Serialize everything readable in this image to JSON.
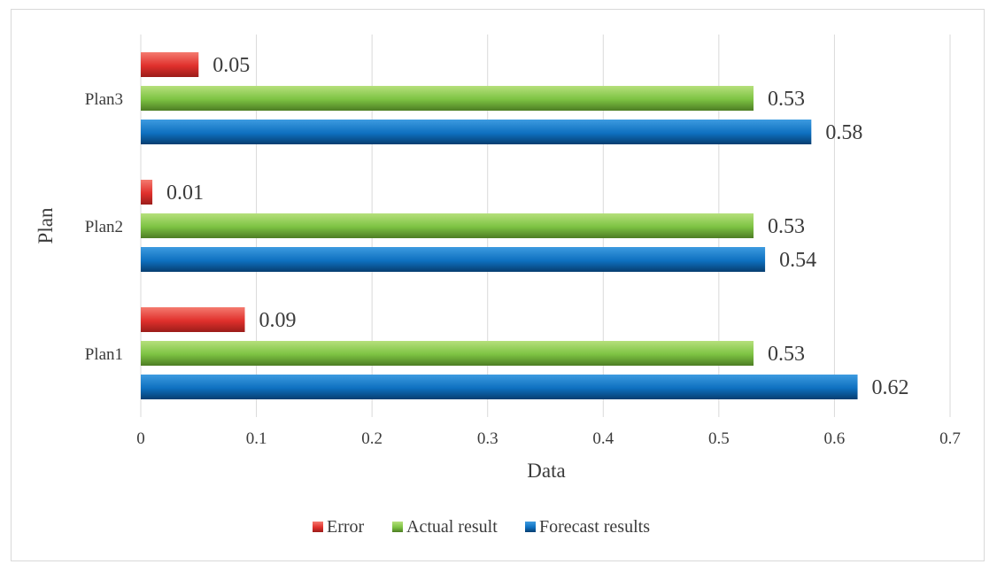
{
  "chart_data": {
    "type": "bar",
    "orientation": "horizontal",
    "categories": [
      "Plan1",
      "Plan2",
      "Plan3"
    ],
    "series": [
      {
        "name": "Error",
        "values": [
          0.09,
          0.01,
          0.05
        ],
        "labels": [
          "0.09",
          "0.01",
          "0.05"
        ],
        "color": "#e0302c"
      },
      {
        "name": "Actual result",
        "values": [
          0.53,
          0.53,
          0.53
        ],
        "labels": [
          "0.53",
          "0.53",
          "0.53"
        ],
        "color": "#7cc242"
      },
      {
        "name": "Forecast results",
        "values": [
          0.62,
          0.54,
          0.58
        ],
        "labels": [
          "0.62",
          "0.54",
          "0.58"
        ],
        "color": "#0e70c0"
      }
    ],
    "xlabel": "Data",
    "ylabel": "Plan",
    "xlim": [
      0,
      0.7
    ],
    "xticks": [
      "0",
      "0.1",
      "0.2",
      "0.3",
      "0.4",
      "0.5",
      "0.6",
      "0.7"
    ],
    "grid": true,
    "legend": "bottom",
    "legend_order": [
      "Error",
      "Actual result",
      "Forecast results"
    ]
  }
}
